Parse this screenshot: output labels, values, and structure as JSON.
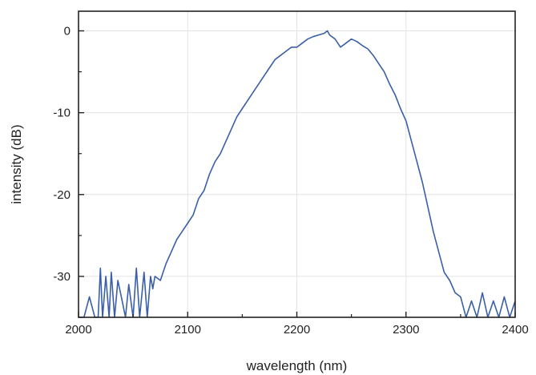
{
  "chart_data": {
    "type": "line",
    "title": "",
    "xlabel": "wavelength (nm)",
    "ylabel": "intensity (dB)",
    "xlim": [
      2000,
      2400
    ],
    "ylim": [
      -35,
      2.4
    ],
    "xticks": [
      2000,
      2100,
      2200,
      2300,
      2400
    ],
    "xtick_labels": [
      "2000",
      "2100",
      "2200",
      "2300",
      "2400"
    ],
    "yticks": [
      0,
      -10,
      -20,
      -30
    ],
    "ytick_labels": [
      "0",
      "-10",
      "-20",
      "-30"
    ],
    "grid": true,
    "legend": "none",
    "series": [
      {
        "color": "#3a5fa8",
        "x": [
          2000,
          2005,
          2010,
          2015,
          2018,
          2020,
          2022,
          2025,
          2028,
          2030,
          2033,
          2036,
          2040,
          2043,
          2046,
          2050,
          2053,
          2056,
          2060,
          2063,
          2066,
          2068,
          2070,
          2075,
          2080,
          2085,
          2090,
          2095,
          2100,
          2105,
          2110,
          2115,
          2120,
          2125,
          2130,
          2135,
          2140,
          2145,
          2150,
          2155,
          2160,
          2165,
          2170,
          2175,
          2180,
          2185,
          2190,
          2195,
          2200,
          2205,
          2210,
          2215,
          2220,
          2225,
          2228,
          2230,
          2235,
          2240,
          2245,
          2250,
          2255,
          2260,
          2265,
          2270,
          2275,
          2280,
          2285,
          2290,
          2295,
          2300,
          2305,
          2310,
          2315,
          2320,
          2325,
          2330,
          2335,
          2340,
          2345,
          2350,
          2355,
          2360,
          2365,
          2370,
          2375,
          2380,
          2385,
          2390,
          2395,
          2400
        ],
        "values": [
          -35,
          -35,
          -32.5,
          -35,
          -35,
          -29,
          -35,
          -30,
          -35,
          -29.5,
          -35,
          -30.5,
          -33,
          -35,
          -31,
          -35,
          -29,
          -35,
          -29.5,
          -35,
          -30,
          -31.5,
          -30,
          -30.5,
          -28.5,
          -27,
          -25.5,
          -24.5,
          -23.5,
          -22.5,
          -20.5,
          -19.5,
          -17.5,
          -16,
          -15,
          -13.5,
          -12,
          -10.5,
          -9.5,
          -8.5,
          -7.5,
          -6.5,
          -5.5,
          -4.5,
          -3.5,
          -3,
          -2.5,
          -2,
          -2,
          -1.5,
          -1,
          -0.7,
          -0.5,
          -0.3,
          0,
          -0.5,
          -1,
          -2,
          -1.5,
          -1,
          -1.3,
          -1.8,
          -2.2,
          -3,
          -4,
          -5,
          -6.5,
          -7.8,
          -9.5,
          -11,
          -13.5,
          -16,
          -18.5,
          -21.5,
          -24.5,
          -27,
          -29.5,
          -30.5,
          -32,
          -32.5,
          -35,
          -33,
          -35,
          -32,
          -35,
          -33,
          -35,
          -32.5,
          -35,
          -33
        ]
      }
    ]
  }
}
